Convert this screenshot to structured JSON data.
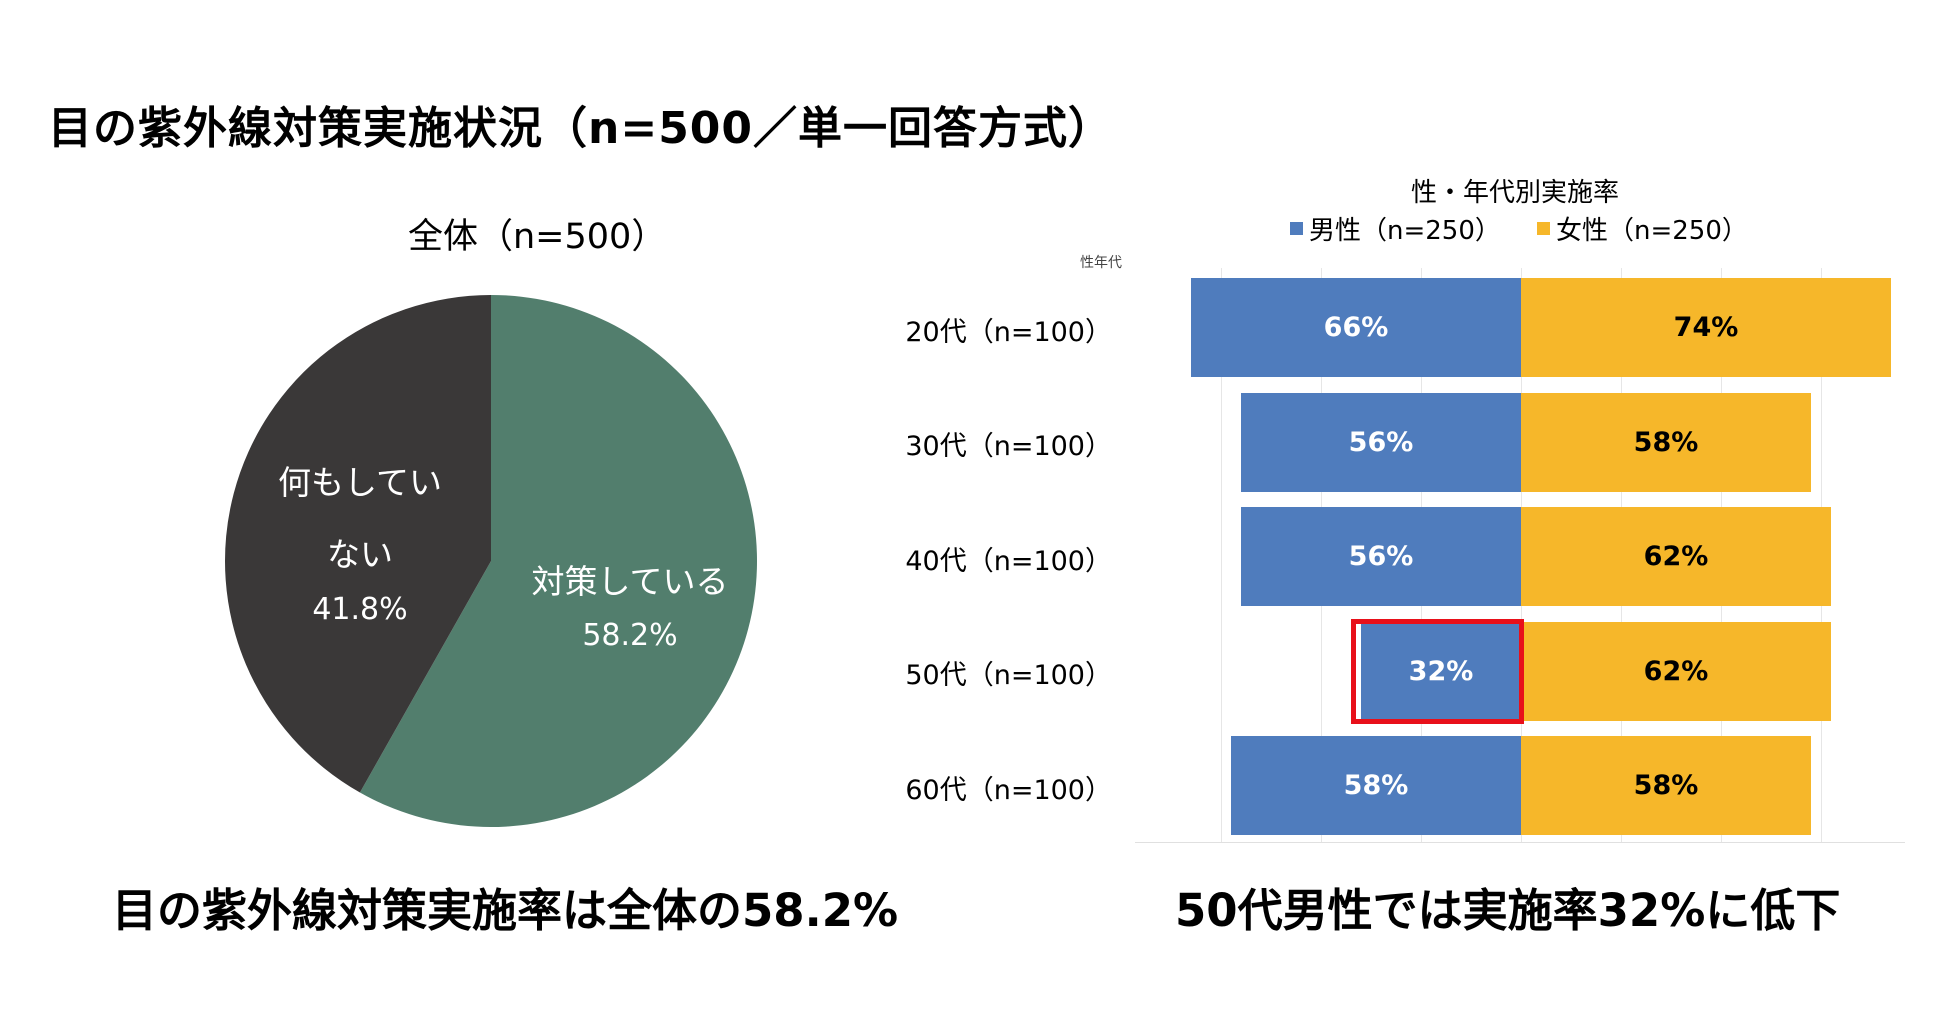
{
  "title": "目の紫外線対策実施状況（n=500／単一回答方式）",
  "colors": {
    "pie_done": "#527e6d",
    "pie_none": "#3a3838",
    "male": "#4f7cbd",
    "female": "#f6b72a",
    "highlight": "#e8101a"
  },
  "chart_data": [
    {
      "type": "pie",
      "title": "全体（n=500）",
      "slices": [
        {
          "label_line1": "対策している",
          "label_line2": "",
          "value": 58.2,
          "value_text": "58.2%"
        },
        {
          "label_line1": "何もしてい",
          "label_line2": "ない",
          "value": 41.8,
          "value_text": "41.8%"
        }
      ]
    },
    {
      "type": "bar",
      "title": "性・年代別実施率",
      "axis_caption": "性年代",
      "legend": [
        "男性（n=250）",
        "女性（n=250）"
      ],
      "categories": [
        "20代（n=100）",
        "30代（n=100）",
        "40代（n=100）",
        "50代（n=100）",
        "60代（n=100）"
      ],
      "series": [
        {
          "name": "男性（n=250）",
          "values": [
            66,
            56,
            56,
            32,
            58
          ],
          "labels": [
            "66%",
            "56%",
            "56%",
            "32%",
            "58%"
          ]
        },
        {
          "name": "女性（n=250）",
          "values": [
            74,
            58,
            62,
            62,
            58
          ],
          "labels": [
            "74%",
            "58%",
            "62%",
            "62%",
            "58%"
          ]
        }
      ],
      "highlighted": "50代 男性 32%"
    }
  ],
  "captions": {
    "left": "目の紫外線対策実施率は全体の58.2%",
    "right": "50代男性では実施率32%に低下"
  }
}
